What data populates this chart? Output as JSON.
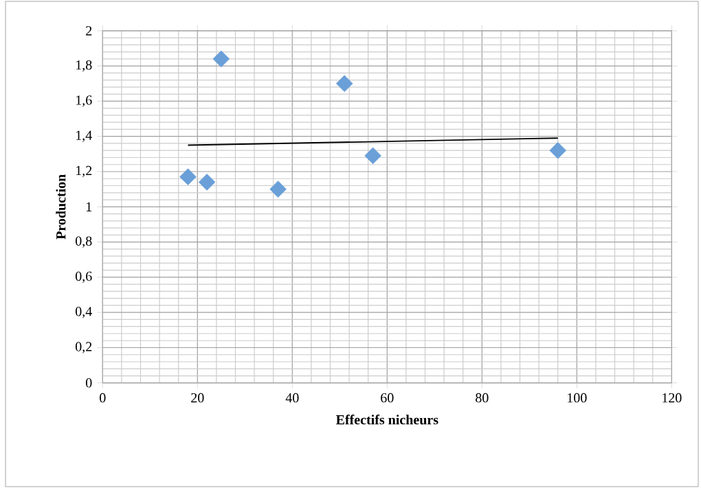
{
  "chart_data": {
    "type": "scatter",
    "xlabel": "Effectifs nicheurs",
    "ylabel": "Production",
    "series": [
      {
        "color": "#6a9fd8",
        "marker": "diamond",
        "x": [
          18,
          22,
          25,
          37,
          51,
          57,
          96
        ],
        "values": [
          1.17,
          1.14,
          1.84,
          1.1,
          1.7,
          1.29,
          1.32
        ]
      },
      {
        "type": "line",
        "marker": "none",
        "color": "#000000",
        "x": [
          18,
          96
        ],
        "values": [
          1.35,
          1.39
        ]
      }
    ],
    "grid": true,
    "xlim": [
      0,
      120
    ],
    "xticks": [
      0,
      20,
      40,
      60,
      80,
      100,
      120
    ],
    "ylim": [
      0,
      2
    ],
    "yticks": [
      {
        "value": 0,
        "label": "0"
      },
      {
        "value": 0.2,
        "label": "0,2"
      },
      {
        "value": 0.4,
        "label": "0,4"
      },
      {
        "value": 0.6,
        "label": "0,6"
      },
      {
        "value": 0.8,
        "label": "0,8"
      },
      {
        "value": 1,
        "label": "1"
      },
      {
        "value": 1.2,
        "label": "1,2"
      },
      {
        "value": 1.4,
        "label": "1,4"
      },
      {
        "value": 1.6,
        "label": "1,6"
      },
      {
        "value": 1.8,
        "label": "1,8"
      },
      {
        "value": 2,
        "label": "2"
      }
    ]
  }
}
